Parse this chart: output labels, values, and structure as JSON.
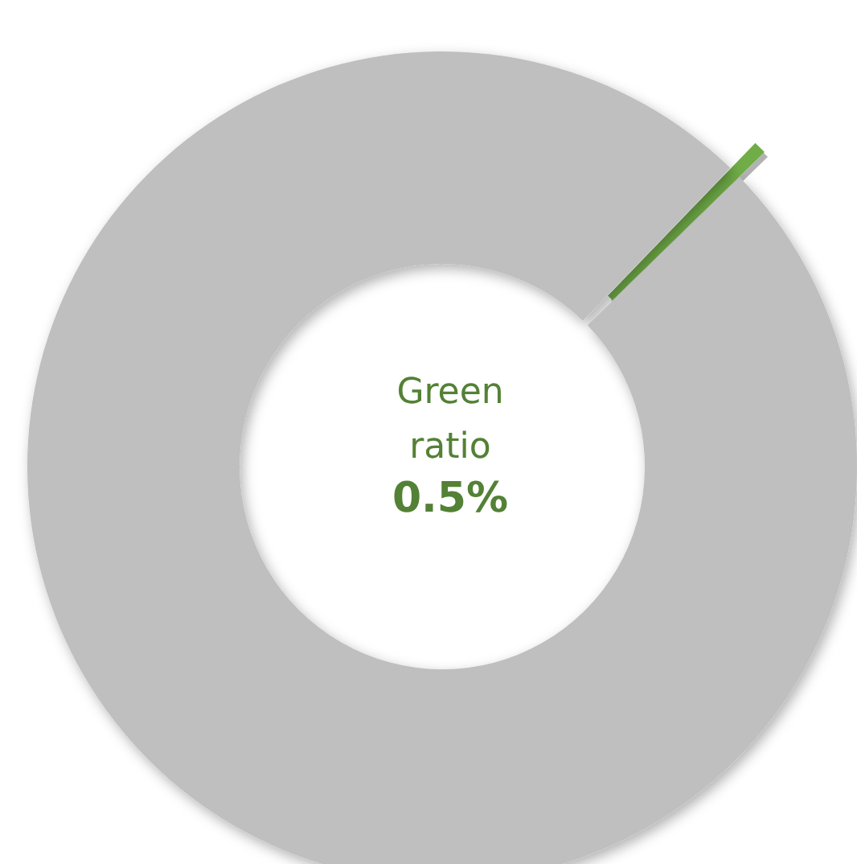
{
  "chart_data": {
    "type": "donut",
    "title": "Green ratio",
    "categories": [
      null,
      null
    ],
    "values": [
      0.5,
      99.5
    ],
    "colors": [
      "#70ad47",
      "#bfbfbf"
    ],
    "annotations": [
      "0.5%"
    ]
  }
}
